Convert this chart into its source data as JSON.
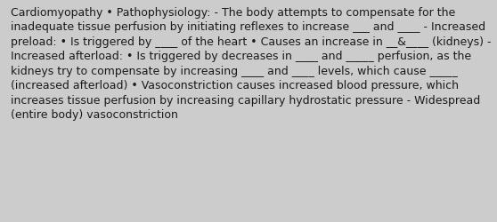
{
  "background_color": "#cccccc",
  "text_color": "#1a1a1a",
  "font_size": 9.0,
  "font_family": "DejaVu Sans",
  "text": "Cardiomyopathy • Pathophysiology: - The body attempts to compensate for the inadequate tissue perfusion by initiating reflexes to increase ___ and ____ - Increased preload: • Is triggered by ____ of the heart • Causes an increase in __&____ (kidneys) - Increased afterload: • Is triggered by decreases in ____ and _____ perfusion, as the kidneys try to compensate by increasing ____ and ____ levels, which cause _____ (increased afterload) • Vasoconstriction causes increased blood pressure, which increases tissue perfusion by increasing capillary hydrostatic pressure - Widespread (entire body) vasoconstriction",
  "figsize": [
    5.58,
    2.51
  ],
  "dpi": 100
}
